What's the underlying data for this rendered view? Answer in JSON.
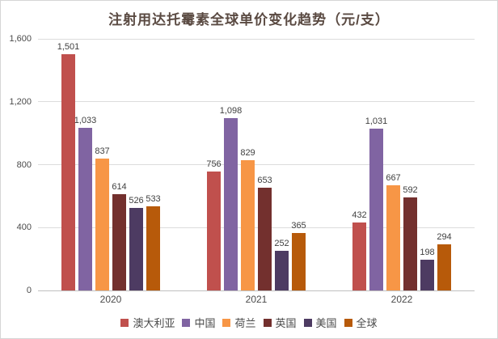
{
  "title": "注射用达托霉素全球单价变化趋势（元/支）",
  "chart_data": {
    "type": "bar",
    "title": "注射用达托霉素全球单价变化趋势（元/支）",
    "categories": [
      "2020",
      "2021",
      "2022"
    ],
    "series": [
      {
        "name": "澳大利亚",
        "color": "#C0504D",
        "values": [
          1501,
          756,
          432
        ]
      },
      {
        "name": "中国",
        "color": "#8064A2",
        "values": [
          1033,
          1098,
          1031
        ]
      },
      {
        "name": "荷兰",
        "color": "#F79646",
        "values": [
          837,
          829,
          667
        ]
      },
      {
        "name": "英国",
        "color": "#73302E",
        "values": [
          614,
          653,
          592
        ]
      },
      {
        "name": "美国",
        "color": "#4D3B62",
        "values": [
          526,
          252,
          198
        ]
      },
      {
        "name": "全球",
        "color": "#B75A0A",
        "values": [
          533,
          365,
          294
        ]
      }
    ],
    "ylim": [
      0,
      1600
    ],
    "yticks": [
      "0",
      "400",
      "800",
      "1,200",
      "1,600"
    ],
    "grid": true,
    "data_labels": true,
    "legend_position": "bottom",
    "xlabel": "",
    "ylabel": ""
  }
}
